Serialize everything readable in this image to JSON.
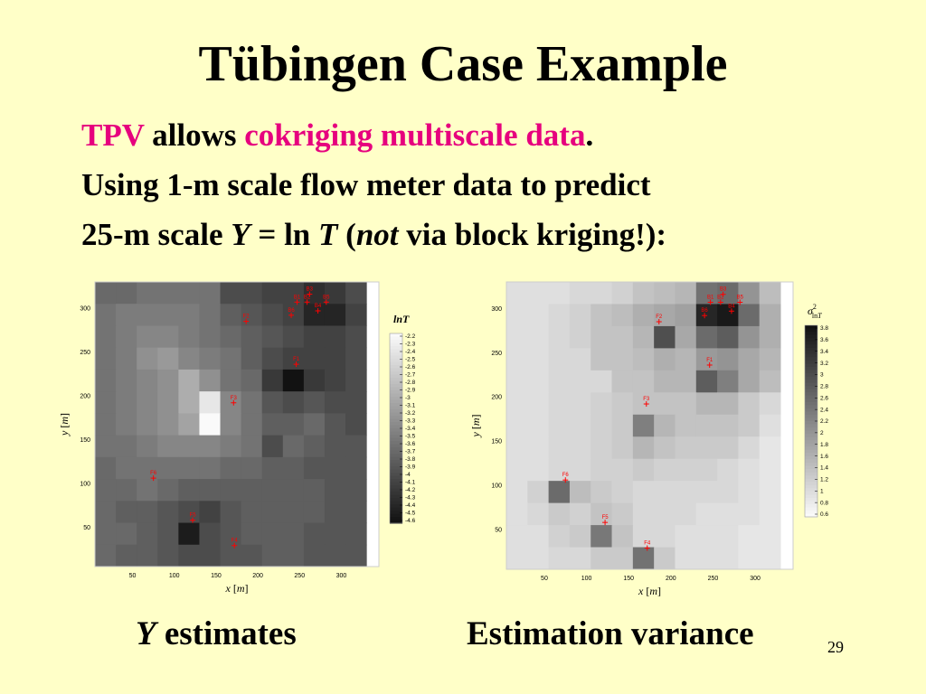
{
  "slide": {
    "title": "Tübingen Case Example",
    "line1": {
      "tpv": "TPV",
      "allows": " allows ",
      "highlight": "cokriging multiscale data",
      "period": "."
    },
    "line2": "Using 1-m scale flow meter data to predict",
    "line3": {
      "pre": "25-m scale ",
      "y": "Y",
      "eq": " = ln ",
      "t": "T",
      "paren": " (",
      "not": "not",
      "post": " via block kriging!):"
    },
    "caption_left": {
      "y": "Y",
      "rest": " estimates"
    },
    "caption_right": "Estimation variance",
    "page_number": "29",
    "accent_color": "#e6007e",
    "background_color": "#ffffc8"
  },
  "chart_data": [
    {
      "type": "heatmap",
      "xlabel": {
        "var": "x",
        "unit": "m"
      },
      "ylabel": {
        "var": "y",
        "unit": "m"
      },
      "xlim": [
        5,
        345
      ],
      "ylim": [
        5,
        330
      ],
      "x_ticks": [
        50,
        100,
        150,
        200,
        250,
        300
      ],
      "y_ticks": [
        50,
        100,
        150,
        200,
        250,
        300
      ],
      "colorbar_label": "lnT",
      "colorbar_ticks": [
        "-2.2",
        "-2.3",
        "-2.4",
        "-2.5",
        "-2.6",
        "-2.7",
        "-2.8",
        "-2.9",
        "-3",
        "-3.1",
        "-3.2",
        "-3.3",
        "-3.4",
        "-3.5",
        "-3.6",
        "-3.7",
        "-3.8",
        "-3.9",
        "-4",
        "-4.1",
        "-4.2",
        "-4.3",
        "-4.4",
        "-4.5",
        "-4.6"
      ],
      "colormap": "gray",
      "value_range": [
        -4.6,
        -2.2
      ],
      "grid": {
        "x0": 5,
        "y0": 5,
        "cell": 25,
        "rows_top_to_bottom": [
          [
            -3.7,
            -3.7,
            -3.6,
            -3.6,
            -3.6,
            -3.6,
            -4.0,
            -4.0,
            -4.1,
            -4.1,
            -4.3,
            -4.2,
            -4.0
          ],
          [
            -3.6,
            -3.5,
            -3.5,
            -3.5,
            -3.5,
            -3.6,
            -3.8,
            -3.9,
            -4.0,
            -4.1,
            -4.4,
            -4.4,
            -4.1
          ],
          [
            -3.6,
            -3.5,
            -3.4,
            -3.4,
            -3.5,
            -3.6,
            -3.7,
            -3.8,
            -3.9,
            -4.0,
            -4.1,
            -4.1,
            -4.0
          ],
          [
            -3.6,
            -3.5,
            -3.3,
            -3.2,
            -3.4,
            -3.5,
            -3.6,
            -3.8,
            -4.0,
            -4.1,
            -4.1,
            -4.1,
            -4.0
          ],
          [
            -3.6,
            -3.5,
            -3.4,
            -3.3,
            -3.0,
            -3.3,
            -3.6,
            -3.7,
            -4.2,
            -4.6,
            -4.2,
            -4.1,
            -4.0
          ],
          [
            -3.6,
            -3.5,
            -3.4,
            -3.3,
            -3.0,
            -2.4,
            -3.4,
            -3.6,
            -3.9,
            -4.0,
            -3.9,
            -4.0,
            -4.0
          ],
          [
            -3.6,
            -3.5,
            -3.4,
            -3.3,
            -3.1,
            -2.2,
            -3.4,
            -3.6,
            -3.8,
            -3.8,
            -3.7,
            -3.9,
            -4.0
          ],
          [
            -3.6,
            -3.6,
            -3.5,
            -3.4,
            -3.4,
            -3.4,
            -3.5,
            -3.6,
            -4.0,
            -3.7,
            -3.8,
            -3.9,
            -3.9
          ],
          [
            -3.7,
            -3.6,
            -3.6,
            -3.6,
            -3.6,
            -3.6,
            -3.7,
            -3.7,
            -3.8,
            -3.8,
            -3.9,
            -3.9,
            -3.9
          ],
          [
            -3.7,
            -3.7,
            -3.6,
            -3.7,
            -3.8,
            -3.8,
            -3.8,
            -3.8,
            -3.8,
            -3.8,
            -3.8,
            -3.9,
            -3.9
          ],
          [
            -3.7,
            -3.8,
            -3.8,
            -3.9,
            -4.0,
            -4.1,
            -3.9,
            -3.8,
            -3.8,
            -3.8,
            -3.8,
            -3.9,
            -3.9
          ],
          [
            -3.7,
            -3.7,
            -3.8,
            -3.9,
            -4.5,
            -4.0,
            -3.9,
            -3.8,
            -3.8,
            -3.8,
            -3.9,
            -3.9,
            -3.9
          ],
          [
            -3.7,
            -3.8,
            -3.8,
            -3.9,
            -4.0,
            -4.0,
            -3.9,
            -3.9,
            -3.8,
            -3.8,
            -3.9,
            -3.9,
            -3.9
          ]
        ]
      },
      "wells": [
        {
          "label": "B3",
          "x": 262,
          "y": 316
        },
        {
          "label": "B2",
          "x": 259,
          "y": 307
        },
        {
          "label": "B1",
          "x": 247,
          "y": 307
        },
        {
          "label": "B5",
          "x": 282,
          "y": 307
        },
        {
          "label": "B4",
          "x": 272,
          "y": 297
        },
        {
          "label": "B6",
          "x": 240,
          "y": 292
        },
        {
          "label": "F2",
          "x": 186,
          "y": 285
        },
        {
          "label": "F1",
          "x": 246,
          "y": 236
        },
        {
          "label": "F3",
          "x": 171,
          "y": 192
        },
        {
          "label": "F6",
          "x": 75,
          "y": 106
        },
        {
          "label": "F5",
          "x": 122,
          "y": 58
        },
        {
          "label": "F4",
          "x": 172,
          "y": 29
        }
      ]
    },
    {
      "type": "heatmap",
      "xlabel": {
        "var": "x",
        "unit": "m"
      },
      "ylabel": {
        "var": "y",
        "unit": "m"
      },
      "xlim": [
        5,
        345
      ],
      "ylim": [
        5,
        330
      ],
      "x_ticks": [
        50,
        100,
        150,
        200,
        250,
        300
      ],
      "y_ticks": [
        50,
        100,
        150,
        200,
        250,
        300
      ],
      "colorbar_label_base": "σ",
      "colorbar_label_sup": "2",
      "colorbar_label_sub": "ln",
      "colorbar_label_sub_it": "T",
      "colorbar_ticks": [
        "3.8",
        "3.6",
        "3.4",
        "3.2",
        "3",
        "2.8",
        "2.6",
        "2.4",
        "2.2",
        "2",
        "1.8",
        "1.6",
        "1.4",
        "1.2",
        "1",
        "0.8",
        "0.6"
      ],
      "colormap": "gray_reversed",
      "value_range": [
        0.5,
        3.9
      ],
      "grid": {
        "x0": 5,
        "y0": 5,
        "cell": 25,
        "rows_top_to_bottom": [
          [
            0.9,
            0.9,
            0.9,
            1.0,
            1.0,
            1.1,
            1.3,
            1.4,
            1.5,
            2.5,
            2.6,
            2.0,
            1.4
          ],
          [
            0.9,
            0.9,
            1.0,
            1.1,
            1.3,
            1.4,
            1.6,
            1.7,
            1.8,
            3.6,
            3.8,
            2.6,
            1.6
          ],
          [
            0.9,
            0.9,
            1.0,
            1.1,
            1.3,
            1.3,
            1.5,
            3.0,
            1.7,
            2.6,
            2.8,
            2.0,
            1.6
          ],
          [
            0.9,
            0.9,
            1.0,
            1.0,
            1.3,
            1.3,
            1.4,
            1.6,
            1.5,
            1.9,
            2.0,
            1.7,
            1.5
          ],
          [
            0.9,
            0.9,
            1.0,
            1.0,
            1.0,
            1.3,
            1.3,
            1.5,
            1.5,
            2.8,
            2.3,
            1.7,
            1.4
          ],
          [
            0.9,
            0.9,
            1.0,
            1.0,
            1.1,
            1.2,
            1.3,
            1.3,
            1.3,
            1.5,
            1.5,
            1.2,
            1.0
          ],
          [
            0.9,
            0.9,
            1.0,
            1.0,
            1.1,
            1.2,
            2.3,
            1.5,
            1.3,
            1.3,
            1.3,
            1.2,
            0.9
          ],
          [
            0.9,
            0.9,
            1.0,
            1.0,
            1.1,
            1.2,
            1.5,
            1.3,
            1.2,
            1.2,
            1.2,
            1.0,
            0.8
          ],
          [
            0.9,
            0.9,
            1.0,
            1.0,
            1.1,
            1.1,
            1.2,
            1.1,
            1.1,
            1.1,
            1.0,
            0.9,
            0.8
          ],
          [
            0.9,
            1.1,
            2.6,
            1.4,
            1.2,
            1.1,
            1.0,
            1.0,
            1.0,
            1.0,
            1.0,
            0.9,
            0.8
          ],
          [
            0.9,
            1.0,
            1.2,
            1.1,
            1.3,
            1.2,
            1.0,
            1.0,
            1.0,
            0.9,
            0.9,
            0.9,
            0.8
          ],
          [
            0.9,
            0.9,
            1.1,
            1.2,
            2.4,
            1.3,
            1.0,
            1.0,
            0.9,
            0.9,
            0.9,
            0.8,
            0.8
          ],
          [
            0.9,
            0.9,
            1.0,
            1.0,
            1.2,
            1.2,
            2.5,
            1.2,
            0.9,
            0.9,
            0.9,
            0.8,
            0.8
          ]
        ]
      },
      "wells": [
        {
          "label": "B3",
          "x": 262,
          "y": 316
        },
        {
          "label": "B2",
          "x": 259,
          "y": 307
        },
        {
          "label": "B1",
          "x": 247,
          "y": 307
        },
        {
          "label": "B5",
          "x": 282,
          "y": 307
        },
        {
          "label": "B4",
          "x": 272,
          "y": 297
        },
        {
          "label": "B6",
          "x": 240,
          "y": 292
        },
        {
          "label": "F2",
          "x": 186,
          "y": 285
        },
        {
          "label": "F1",
          "x": 246,
          "y": 236
        },
        {
          "label": "F3",
          "x": 171,
          "y": 192
        },
        {
          "label": "F6",
          "x": 75,
          "y": 106
        },
        {
          "label": "F5",
          "x": 122,
          "y": 58
        },
        {
          "label": "F4",
          "x": 172,
          "y": 29
        }
      ]
    }
  ]
}
